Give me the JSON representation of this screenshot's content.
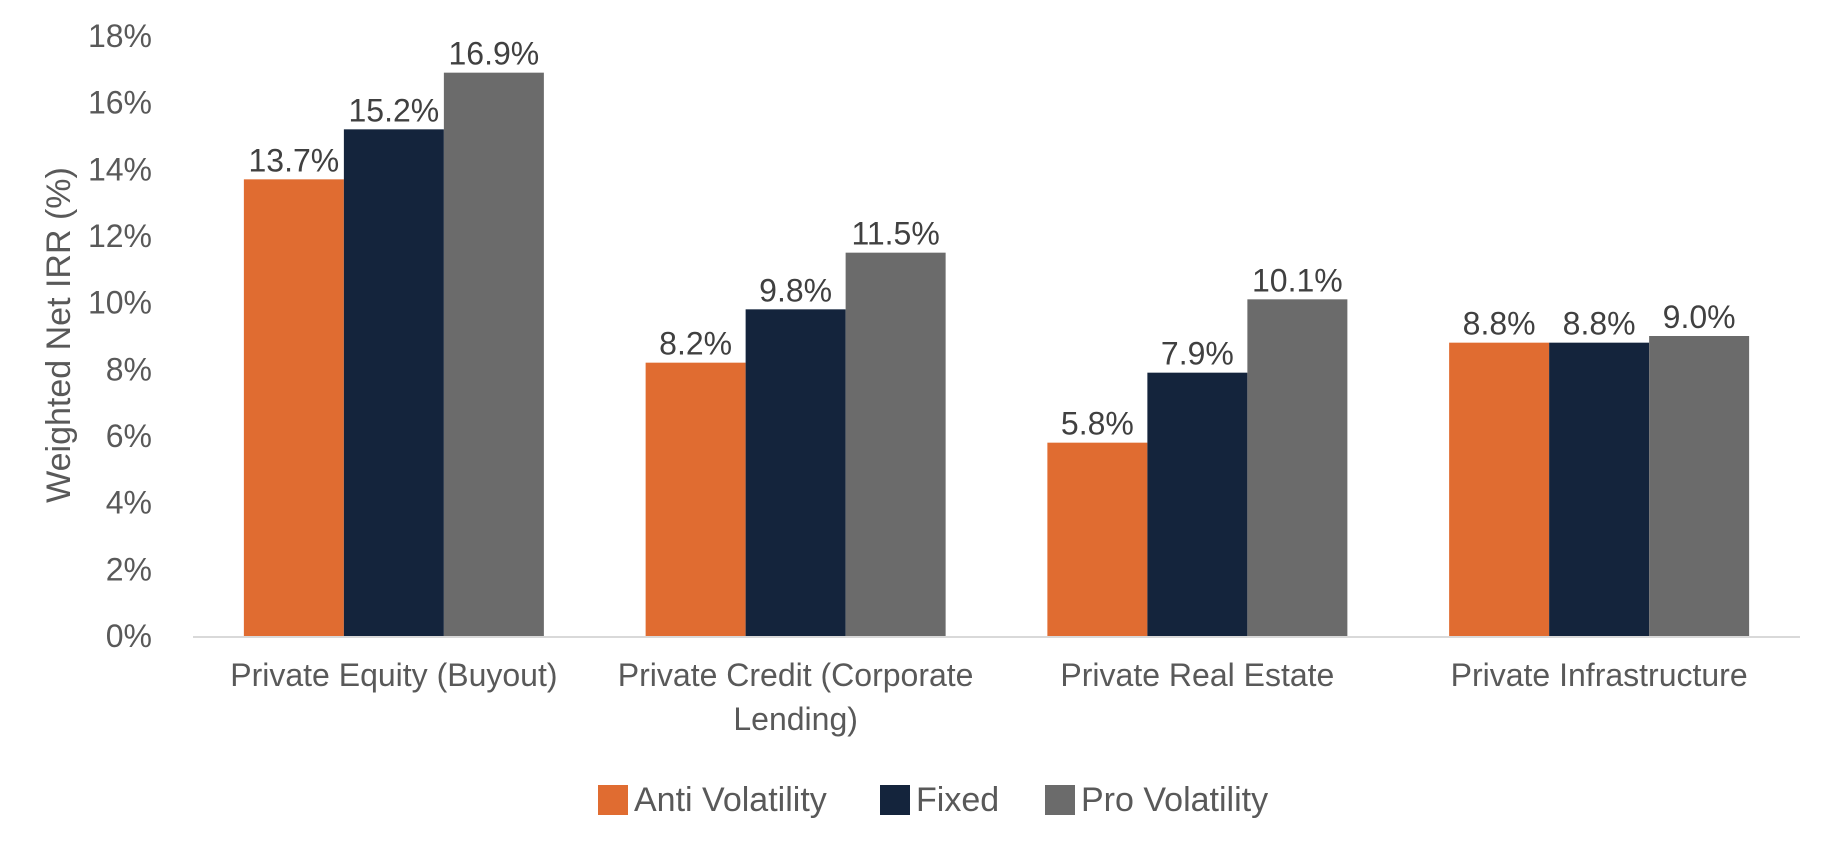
{
  "chart_data": {
    "type": "bar",
    "title": "",
    "xlabel": "",
    "ylabel": "Weighted Net IRR (%)",
    "ylim": [
      0,
      18
    ],
    "yticks": [
      "0%",
      "2%",
      "4%",
      "6%",
      "8%",
      "10%",
      "12%",
      "14%",
      "16%",
      "18%"
    ],
    "ytick_values": [
      0,
      2,
      4,
      6,
      8,
      10,
      12,
      14,
      16,
      18
    ],
    "grid": false,
    "legend_position": "bottom",
    "categories": [
      [
        "Private Equity (Buyout)"
      ],
      [
        "Private Credit (Corporate",
        "Lending)"
      ],
      [
        "Private Real Estate"
      ],
      [
        "Private Infrastructure"
      ]
    ],
    "series": [
      {
        "name": "Anti Volatility",
        "color": "#E06C31",
        "values": [
          13.7,
          8.2,
          5.8,
          8.8
        ],
        "labels": [
          "13.7%",
          "8.2%",
          "5.8%",
          "8.8%"
        ]
      },
      {
        "name": "Fixed",
        "color": "#14243C",
        "values": [
          15.2,
          9.8,
          7.9,
          8.8
        ],
        "labels": [
          "15.2%",
          "9.8%",
          "7.9%",
          "8.8%"
        ]
      },
      {
        "name": "Pro Volatility",
        "color": "#6B6B6B",
        "values": [
          16.9,
          11.5,
          10.1,
          9.0
        ],
        "labels": [
          "16.9%",
          "11.5%",
          "10.1%",
          "9.0%"
        ]
      }
    ]
  }
}
